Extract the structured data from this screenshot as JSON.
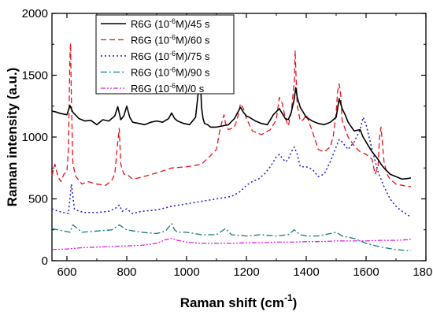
{
  "chart_data": {
    "type": "line",
    "xlabel": "Raman shift (cm",
    "xlabel_sup": "-1",
    "xlabel_tail": ")",
    "ylabel": "Raman intensity (a.u.)",
    "xlim": [
      550,
      1800
    ],
    "ylim": [
      0,
      2000
    ],
    "xticks": [
      600,
      800,
      1000,
      1200,
      1400,
      1600,
      1800
    ],
    "yticks": [
      0,
      500,
      1000,
      1500,
      2000
    ],
    "grid": false,
    "legend_position": "top-left",
    "series": [
      {
        "name": "R6G (10-6M)/45 s",
        "legend": {
          "pre": "R6G (10",
          "sup": "-6",
          "post": "M)/45 s"
        },
        "color": "#000000",
        "dash": "",
        "width": 1.6,
        "x": [
          550,
          560,
          580,
          600,
          610,
          620,
          640,
          660,
          680,
          700,
          720,
          740,
          760,
          770,
          775,
          780,
          790,
          800,
          810,
          820,
          840,
          860,
          880,
          900,
          920,
          940,
          950,
          960,
          970,
          990,
          1010,
          1030,
          1040,
          1045,
          1050,
          1055,
          1060,
          1070,
          1080,
          1100,
          1120,
          1140,
          1160,
          1180,
          1190,
          1200,
          1210,
          1230,
          1250,
          1270,
          1290,
          1310,
          1320,
          1330,
          1340,
          1350,
          1360,
          1365,
          1370,
          1380,
          1390,
          1400,
          1420,
          1440,
          1460,
          1480,
          1500,
          1510,
          1520,
          1530,
          1540,
          1560,
          1580,
          1590,
          1600,
          1620,
          1640,
          1650,
          1660,
          1680,
          1700,
          1720,
          1740,
          1750
        ],
        "y": [
          1210,
          1205,
          1190,
          1180,
          1255,
          1200,
          1150,
          1130,
          1135,
          1100,
          1140,
          1130,
          1170,
          1245,
          1195,
          1140,
          1170,
          1250,
          1160,
          1120,
          1110,
          1100,
          1120,
          1130,
          1120,
          1150,
          1195,
          1150,
          1130,
          1110,
          1100,
          1160,
          1380,
          1530,
          1240,
          1150,
          1110,
          1100,
          1080,
          1080,
          1090,
          1100,
          1150,
          1240,
          1200,
          1170,
          1160,
          1130,
          1110,
          1100,
          1180,
          1230,
          1190,
          1150,
          1140,
          1200,
          1310,
          1400,
          1320,
          1240,
          1200,
          1160,
          1130,
          1110,
          1100,
          1120,
          1160,
          1310,
          1230,
          1180,
          1120,
          1050,
          1060,
          1000,
          960,
          880,
          820,
          780,
          750,
          700,
          680,
          660,
          665,
          670
        ]
      },
      {
        "name": "R6G (10-6M)/60 s",
        "legend": {
          "pre": "R6G (10",
          "sup": "-6",
          "post": "M)/60 s"
        },
        "color": "#e8141c",
        "dash": "7,4",
        "width": 1.3,
        "x": [
          550,
          560,
          570,
          580,
          590,
          600,
          605,
          610,
          612,
          615,
          620,
          630,
          650,
          670,
          700,
          730,
          750,
          760,
          770,
          775,
          780,
          790,
          800,
          820,
          840,
          870,
          900,
          950,
          1000,
          1050,
          1080,
          1100,
          1110,
          1120,
          1125,
          1130,
          1140,
          1160,
          1170,
          1180,
          1190,
          1200,
          1220,
          1250,
          1280,
          1300,
          1310,
          1320,
          1330,
          1340,
          1350,
          1360,
          1363,
          1366,
          1370,
          1380,
          1390,
          1400,
          1420,
          1440,
          1460,
          1480,
          1490,
          1500,
          1505,
          1510,
          1515,
          1520,
          1540,
          1560,
          1580,
          1600,
          1620,
          1630,
          1640,
          1645,
          1650,
          1660,
          1670,
          1680,
          1700,
          1720,
          1740,
          1750
        ],
        "y": [
          690,
          780,
          680,
          640,
          700,
          720,
          900,
          1640,
          1760,
          1300,
          780,
          680,
          620,
          640,
          620,
          610,
          650,
          700,
          960,
          1070,
          780,
          700,
          700,
          660,
          670,
          690,
          710,
          750,
          760,
          780,
          850,
          900,
          1040,
          1140,
          1180,
          1110,
          1060,
          1080,
          1150,
          1270,
          1230,
          1150,
          1050,
          1020,
          1060,
          1140,
          1320,
          1270,
          1150,
          1090,
          1200,
          1450,
          1700,
          1480,
          1250,
          1130,
          1140,
          1180,
          1050,
          900,
          880,
          920,
          1000,
          1200,
          1370,
          1430,
          1350,
          1130,
          1000,
          930,
          880,
          860,
          820,
          700,
          760,
          1000,
          1080,
          800,
          700,
          660,
          620,
          610,
          600,
          600
        ]
      },
      {
        "name": "R6G (10-6M)/75 s",
        "legend": {
          "pre": "R6G (10",
          "sup": "-6",
          "post": "M)/75 s"
        },
        "color": "#1a1ad6",
        "dash": "2,3",
        "width": 1.5,
        "x": [
          550,
          570,
          590,
          605,
          610,
          615,
          625,
          640,
          660,
          700,
          740,
          760,
          775,
          785,
          800,
          820,
          850,
          900,
          950,
          1000,
          1050,
          1100,
          1150,
          1180,
          1200,
          1220,
          1240,
          1260,
          1280,
          1300,
          1310,
          1320,
          1330,
          1340,
          1350,
          1360,
          1370,
          1380,
          1400,
          1420,
          1440,
          1460,
          1480,
          1500,
          1510,
          1520,
          1540,
          1560,
          1580,
          1590,
          1600,
          1620,
          1640,
          1660,
          1680,
          1700,
          1720,
          1740,
          1750
        ],
        "y": [
          420,
          400,
          390,
          380,
          500,
          620,
          420,
          400,
          390,
          390,
          400,
          420,
          450,
          400,
          420,
          380,
          400,
          410,
          440,
          460,
          480,
          500,
          520,
          560,
          610,
          640,
          660,
          700,
          760,
          840,
          860,
          830,
          800,
          820,
          880,
          920,
          860,
          760,
          760,
          740,
          680,
          700,
          800,
          920,
          980,
          960,
          900,
          960,
          1060,
          1160,
          1100,
          900,
          720,
          600,
          500,
          440,
          400,
          370,
          350
        ]
      },
      {
        "name": "R6G (10-6M)/90 s",
        "legend": {
          "pre": "R6G (10",
          "sup": "-6",
          "post": "M)/90 s"
        },
        "color": "#127a7a",
        "dash": "8,3,2,3",
        "width": 1.3,
        "x": [
          550,
          570,
          590,
          610,
          620,
          650,
          700,
          750,
          775,
          800,
          850,
          900,
          930,
          950,
          960,
          970,
          1000,
          1050,
          1100,
          1130,
          1150,
          1200,
          1250,
          1300,
          1340,
          1360,
          1380,
          1400,
          1440,
          1480,
          1500,
          1520,
          1560,
          1600,
          1650,
          1700,
          1750
        ],
        "y": [
          260,
          250,
          240,
          230,
          290,
          230,
          240,
          250,
          290,
          250,
          230,
          220,
          240,
          300,
          250,
          230,
          230,
          210,
          210,
          260,
          210,
          200,
          210,
          200,
          210,
          250,
          210,
          200,
          200,
          220,
          230,
          200,
          180,
          140,
          110,
          90,
          80
        ]
      },
      {
        "name": "R6G (10-6M)/0 s",
        "legend": {
          "pre": "R6G (10",
          "sup": "-6",
          "post": "M)/0 s"
        },
        "color": "#e01ee0",
        "dash": "6,2,2,2,2,2",
        "width": 1.3,
        "x": [
          550,
          600,
          650,
          700,
          750,
          800,
          850,
          900,
          930,
          950,
          970,
          1000,
          1050,
          1100,
          1150,
          1200,
          1250,
          1300,
          1350,
          1400,
          1450,
          1500,
          1550,
          1600,
          1650,
          1700,
          1740,
          1750
        ],
        "y": [
          90,
          95,
          105,
          110,
          115,
          120,
          125,
          140,
          170,
          180,
          165,
          150,
          140,
          140,
          140,
          145,
          145,
          150,
          150,
          155,
          155,
          160,
          160,
          160,
          165,
          165,
          170,
          175
        ]
      }
    ]
  }
}
